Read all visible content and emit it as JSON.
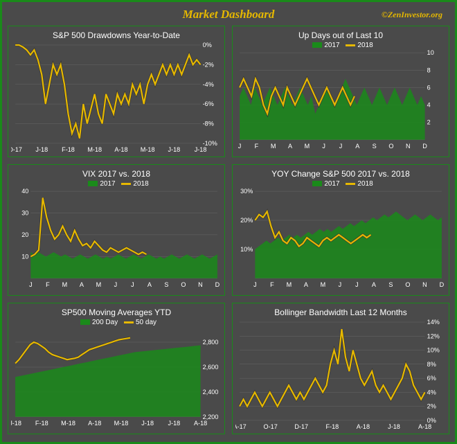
{
  "page": {
    "title": "Market Dashboard",
    "brand": "©ZenInvestor.org",
    "border_color": "#1a8a1a",
    "bg": "#4a4a4a",
    "accent": "#e6b800"
  },
  "panels": {
    "drawdowns": {
      "type": "line",
      "title": "S&P 500 Drawdowns Year-to-Date",
      "x_labels": [
        "D-17",
        "J-18",
        "F-18",
        "M-18",
        "A-18",
        "M-18",
        "J-18",
        "J-18"
      ],
      "y": {
        "min": -10,
        "max": 0,
        "step": 2,
        "suffix": "%",
        "side": "right"
      },
      "line_color": "#e6b800",
      "series": [
        0,
        0,
        -0.2,
        -0.5,
        -1,
        -0.5,
        -1.5,
        -3,
        -6,
        -4,
        -2,
        -3,
        -2,
        -4,
        -7,
        -9,
        -8,
        -9.5,
        -6,
        -8,
        -6.5,
        -5,
        -7,
        -8,
        -5,
        -6,
        -7,
        -5,
        -6,
        -5,
        -6,
        -4,
        -5,
        -4,
        -6,
        -4,
        -3,
        -4,
        -3,
        -2,
        -3,
        -2,
        -3,
        -2,
        -3,
        -2,
        -1,
        -2,
        -1.5,
        -2
      ]
    },
    "updays": {
      "type": "area-line",
      "title": "Up Days out of Last  10",
      "legend": {
        "area": "2017",
        "line": "2018",
        "area_color": "#1a8a1a",
        "line_color": "#e6b800"
      },
      "x_labels": [
        "J",
        "F",
        "M",
        "A",
        "M",
        "J",
        "J",
        "A",
        "S",
        "O",
        "N",
        "D"
      ],
      "y": {
        "min": 0,
        "max": 10,
        "step": 2,
        "side": "right"
      },
      "series2017": [
        5,
        6,
        5,
        4,
        6,
        5,
        4,
        5,
        6,
        5,
        4,
        5,
        6,
        5,
        4,
        5,
        6,
        5,
        4,
        5,
        3,
        4,
        5,
        6,
        5,
        4,
        5,
        6,
        7,
        6,
        5,
        4,
        5,
        6,
        5,
        4,
        5,
        6,
        5,
        4,
        5,
        6,
        5,
        4,
        5,
        6,
        5,
        4,
        5,
        4
      ],
      "series2018": [
        6,
        7,
        6,
        5,
        7,
        6,
        4,
        3,
        5,
        6,
        5,
        4,
        6,
        5,
        4,
        5,
        6,
        7,
        6,
        5,
        4,
        5,
        6,
        5,
        4,
        5,
        6,
        5,
        4,
        5
      ]
    },
    "vix": {
      "type": "area-line",
      "title": "VIX 2017 vs. 2018",
      "legend": {
        "area": "2017",
        "line": "2018",
        "area_color": "#1a8a1a",
        "line_color": "#e6b800"
      },
      "x_labels": [
        "J",
        "F",
        "M",
        "A",
        "M",
        "J",
        "J",
        "A",
        "S",
        "O",
        "N",
        "D"
      ],
      "y": {
        "min": 0,
        "max": 40,
        "step": 10,
        "side": "left"
      },
      "series2017": [
        12,
        11,
        12,
        11,
        10,
        11,
        12,
        11,
        10,
        11,
        10,
        9,
        10,
        11,
        10,
        9,
        10,
        11,
        10,
        9,
        10,
        9,
        10,
        11,
        10,
        9,
        10,
        11,
        10,
        9,
        10,
        11,
        10,
        9,
        10,
        9,
        10,
        11,
        10,
        9,
        10,
        11,
        10,
        9,
        10,
        11,
        10,
        9,
        10,
        11
      ],
      "series2018": [
        10,
        11,
        13,
        37,
        28,
        22,
        18,
        20,
        24,
        20,
        17,
        22,
        18,
        15,
        16,
        14,
        17,
        15,
        13,
        12,
        14,
        13,
        12,
        13,
        14,
        13,
        12,
        11,
        12,
        11
      ]
    },
    "yoy": {
      "type": "area-line",
      "title": "YOY Change S&P 500 2017 vs. 2018",
      "legend": {
        "area": "2017",
        "line": "2018",
        "area_color": "#1a8a1a",
        "line_color": "#e6b800"
      },
      "x_labels": [
        "J",
        "F",
        "M",
        "A",
        "M",
        "J",
        "J",
        "A",
        "S",
        "O",
        "N",
        "D"
      ],
      "y": {
        "min": 0,
        "max": 30,
        "step": 10,
        "suffix": "%",
        "side": "left"
      },
      "series2017": [
        10,
        11,
        12,
        13,
        12,
        13,
        14,
        13,
        14,
        15,
        14,
        15,
        14,
        15,
        16,
        15,
        16,
        17,
        16,
        17,
        16,
        17,
        18,
        17,
        18,
        19,
        18,
        19,
        20,
        19,
        20,
        21,
        20,
        21,
        22,
        21,
        22,
        23,
        22,
        21,
        20,
        21,
        22,
        21,
        20,
        21,
        22,
        21,
        20,
        21
      ],
      "series2018": [
        20,
        22,
        21,
        23,
        18,
        14,
        16,
        13,
        12,
        14,
        13,
        11,
        12,
        14,
        13,
        12,
        11,
        13,
        14,
        13,
        14,
        15,
        14,
        13,
        12,
        13,
        14,
        15,
        14,
        15
      ]
    },
    "ma": {
      "type": "area-line",
      "title": "SP500 Moving Averages YTD",
      "legend": {
        "area": "200 Day",
        "line": "50 day",
        "area_color": "#1a8a1a",
        "line_color": "#e6b800"
      },
      "x_labels": [
        "J-18",
        "F-18",
        "M-18",
        "A-18",
        "M-18",
        "J-18",
        "J-18",
        "A-18"
      ],
      "y": {
        "min": 2200,
        "max": 2900,
        "step": 200,
        "side": "right"
      },
      "series2017": [
        2520,
        2530,
        2540,
        2550,
        2560,
        2570,
        2580,
        2590,
        2600,
        2610,
        2620,
        2630,
        2640,
        2650,
        2660,
        2670,
        2680,
        2690,
        2700,
        2710,
        2720,
        2725,
        2730,
        2735,
        2740,
        2745,
        2750,
        2755,
        2760,
        2765,
        2770,
        2775
      ],
      "series2018": [
        2630,
        2660,
        2700,
        2740,
        2780,
        2800,
        2790,
        2770,
        2750,
        2720,
        2700,
        2690,
        2680,
        2670,
        2660,
        2665,
        2670,
        2680,
        2700,
        2720,
        2740,
        2750,
        2760,
        2770,
        2780,
        2790,
        2800,
        2810,
        2820,
        2825,
        2830,
        2835
      ]
    },
    "bollinger": {
      "type": "line",
      "title": "Bollinger Bandwidth Last 12 Months",
      "x_labels": [
        "A-17",
        "O-17",
        "D-17",
        "F-18",
        "A-18",
        "J-18",
        "A-18"
      ],
      "y": {
        "min": 0,
        "max": 14,
        "step": 2,
        "suffix": "%",
        "side": "right"
      },
      "line_color": "#e6b800",
      "series": [
        2,
        3,
        2,
        3,
        4,
        3,
        2,
        3,
        4,
        3,
        2,
        3,
        4,
        5,
        4,
        3,
        4,
        3,
        4,
        5,
        6,
        5,
        4,
        5,
        8,
        10,
        8,
        13,
        9,
        7,
        10,
        8,
        6,
        5,
        6,
        7,
        5,
        4,
        5,
        4,
        3,
        4,
        5,
        6,
        8,
        7,
        5,
        4,
        3,
        4
      ]
    }
  }
}
